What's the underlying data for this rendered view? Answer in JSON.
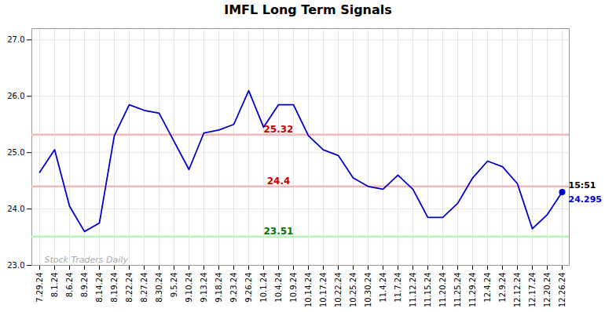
{
  "chart_data": {
    "type": "line",
    "title": "IMFL Long Term Signals",
    "categories": [
      "7.29.24",
      "8.1.24",
      "8.6.24",
      "8.9.24",
      "8.14.24",
      "8.19.24",
      "8.22.24",
      "8.27.24",
      "8.30.24",
      "9.5.24",
      "9.10.24",
      "9.13.24",
      "9.18.24",
      "9.23.24",
      "9.26.24",
      "10.1.24",
      "10.4.24",
      "10.9.24",
      "10.14.24",
      "10.17.24",
      "10.22.24",
      "10.25.24",
      "10.30.24",
      "11.4.24",
      "11.7.24",
      "11.12.24",
      "11.15.24",
      "11.20.24",
      "11.25.24",
      "11.29.24",
      "12.4.24",
      "12.9.24",
      "12.12.24",
      "12.17.24",
      "12.20.24",
      "12.26.24"
    ],
    "values": [
      24.65,
      25.05,
      24.05,
      23.6,
      23.75,
      25.3,
      25.85,
      25.75,
      25.7,
      25.2,
      24.7,
      25.35,
      25.4,
      25.5,
      26.1,
      25.45,
      25.85,
      25.85,
      25.3,
      25.05,
      24.95,
      24.55,
      24.4,
      24.35,
      24.6,
      24.35,
      23.85,
      23.85,
      24.1,
      24.55,
      24.85,
      24.75,
      24.45,
      23.65,
      23.9,
      24.3
    ],
    "color": "#0000cc",
    "ylim": [
      23.0,
      27.2
    ],
    "yticks": [
      23,
      24,
      25,
      26,
      27
    ],
    "grid": true,
    "reference_lines": [
      {
        "value": 25.32,
        "label": "25.32",
        "color": "#f5b8b8",
        "label_color": "#cc0000"
      },
      {
        "value": 24.4,
        "label": "24.4",
        "color": "#f5b8b8",
        "label_color": "#cc0000"
      },
      {
        "value": 23.51,
        "label": "23.51",
        "color": "#b8f5b8",
        "label_color": "#007700"
      }
    ],
    "highlight": "12.26.24",
    "annotations": [
      {
        "text": "15:51",
        "color": "#000000"
      },
      {
        "text": "24.295",
        "color": "#0000cc"
      }
    ],
    "watermark": {
      "text": "Stock Traders Daily",
      "color": "#aaaaaa"
    }
  }
}
